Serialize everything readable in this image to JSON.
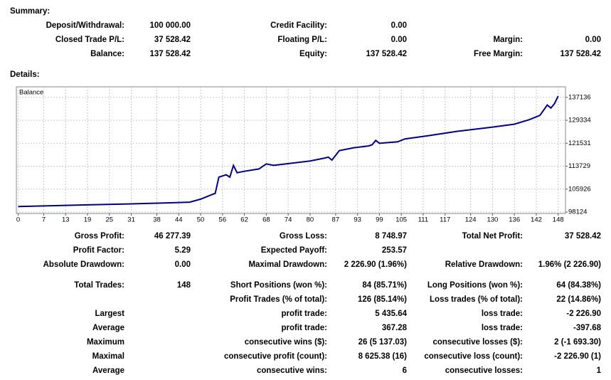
{
  "summary": {
    "title": "Summary:",
    "rows": [
      [
        "Deposit/Withdrawal:",
        "100 000.00",
        "Credit Facility:",
        "0.00",
        null,
        null
      ],
      [
        "Closed Trade P/L:",
        "37 528.42",
        "Floating P/L:",
        "0.00",
        "Margin:",
        "0.00"
      ],
      [
        "Balance:",
        "137 528.42",
        "Equity:",
        "137 528.42",
        "Free Margin:",
        "137 528.42"
      ]
    ]
  },
  "details": {
    "title": "Details:",
    "rows": [
      [
        "Gross Profit:",
        "46 277.39",
        "Gross Loss:",
        "8 748.97",
        "Total Net Profit:",
        "37 528.42"
      ],
      [
        "Profit Factor:",
        "5.29",
        "Expected Payoff:",
        "253.57",
        null,
        null
      ],
      [
        "Absolute Drawdown:",
        "0.00",
        "Maximal Drawdown:",
        "2 226.90 (1.96%)",
        "Relative Drawdown:",
        "1.96% (2 226.90)"
      ],
      [
        "Total Trades:",
        "148",
        "Short Positions (won %):",
        "84 (85.71%)",
        "Long Positions (won %):",
        "64 (84.38%)"
      ],
      [
        null,
        null,
        "Profit Trades (% of total):",
        "126 (85.14%)",
        "Loss trades (% of total):",
        "22 (14.86%)"
      ],
      [
        "Largest",
        null,
        "profit trade:",
        "5 435.64",
        "loss trade:",
        "-2 226.90"
      ],
      [
        "Average",
        null,
        "profit trade:",
        "367.28",
        "loss trade:",
        "-397.68"
      ],
      [
        "Maximum",
        null,
        "consecutive wins ($):",
        "26 (5 137.03)",
        "consecutive losses ($):",
        "2 (-1 693.30)"
      ],
      [
        "Maximal",
        null,
        "consecutive profit (count):",
        "8 625.38 (16)",
        "consecutive loss (count):",
        "-2 226.90 (1)"
      ],
      [
        "Average",
        null,
        "consecutive wins:",
        "6",
        "consecutive losses:",
        "1"
      ]
    ]
  },
  "chart_data": {
    "type": "line",
    "x": [
      0,
      10,
      20,
      30,
      40,
      47,
      50,
      53,
      54,
      55,
      57,
      58,
      59,
      60,
      62,
      66,
      68,
      70,
      80,
      84,
      85,
      86,
      88,
      92,
      96,
      97,
      98,
      99,
      104,
      106,
      112,
      120,
      130,
      136,
      140,
      142,
      143,
      145,
      146,
      147,
      148
    ],
    "series": [
      {
        "name": "Balance",
        "color": "#000080",
        "values": [
          100000,
          100300,
          100600,
          100900,
          101200,
          101500,
          102500,
          104000,
          104500,
          110000,
          110800,
          110000,
          114000,
          111500,
          112000,
          112800,
          114500,
          114000,
          115500,
          116500,
          116800,
          115800,
          119000,
          120000,
          120600,
          121000,
          122500,
          121500,
          122000,
          123000,
          124000,
          125500,
          127000,
          128000,
          129500,
          130500,
          131000,
          134500,
          133500,
          135000,
          137528
        ]
      }
    ],
    "xlim": [
      -0.5,
      150
    ],
    "ylim": [
      97650,
      140700
    ],
    "xticks": [
      0,
      7,
      13,
      19,
      25,
      31,
      38,
      44,
      50,
      56,
      62,
      68,
      74,
      80,
      87,
      93,
      99,
      105,
      111,
      117,
      124,
      130,
      136,
      142,
      148
    ],
    "yticks": [
      98124,
      105926,
      113729,
      121531,
      129334,
      137136
    ],
    "grid": true
  }
}
